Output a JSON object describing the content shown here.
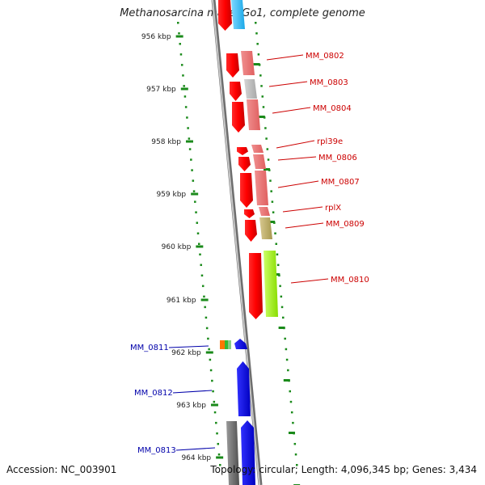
{
  "title": "Methanosarcina mazei Go1, complete genome",
  "footer": {
    "accession": "Accession: NC_003901",
    "topology": "Topology: circular; Length: 4,096,345 bp; Genes: 3,434"
  },
  "scale_labels": [
    "956 kbp",
    "957 kbp",
    "958 kbp",
    "959 kbp",
    "960 kbp",
    "961 kbp",
    "962 kbp",
    "963 kbp",
    "964 kbp"
  ],
  "genes_forward": [
    "MM_0802",
    "MM_0803",
    "MM_0804",
    "rpl39e",
    "MM_0806",
    "MM_0807",
    "rplX",
    "MM_0809",
    "MM_0810"
  ],
  "genes_reverse": [
    "MM_0811",
    "MM_0812",
    "MM_0813"
  ],
  "colors": {
    "forward_label": "#cc0000",
    "reverse_label": "#0000aa",
    "scale_ticks": "#1a8a1a",
    "backbone": "#9a9a9a"
  }
}
